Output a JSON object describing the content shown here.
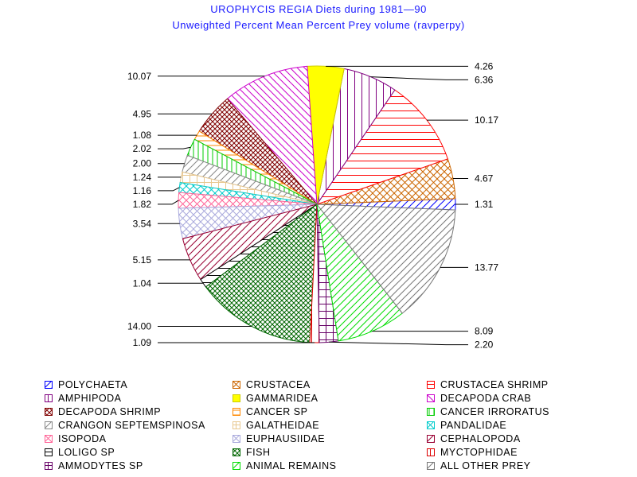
{
  "chart_data": {
    "type": "pie",
    "title": "UROPHYCIS REGIA Diets during 1981—90",
    "subtitle": "Unweighted Percent Mean Percent Prey  volume (ravperpy)",
    "slices": [
      {
        "name": "POLYCHAETA",
        "value": 1.31,
        "label": "1.31",
        "color": "#0000ff",
        "pattern": "diag-fwd"
      },
      {
        "name": "CRUSTACEA",
        "value": 4.67,
        "label": "4.67",
        "color": "#cc6600",
        "pattern": "cross-diag"
      },
      {
        "name": "CRUSTACEA SHRIMP",
        "value": 10.17,
        "label": "10.17",
        "color": "#ff0000",
        "pattern": "horiz"
      },
      {
        "name": "AMPHIPODA",
        "value": 6.36,
        "label": "6.36",
        "color": "#800080",
        "pattern": "vert"
      },
      {
        "name": "GAMMARIDEA",
        "value": 4.26,
        "label": "4.26",
        "color": "#ffff00",
        "pattern": "solid"
      },
      {
        "name": "DECAPODA CRAB",
        "value": 10.07,
        "label": "10.07",
        "color": "#cc00cc",
        "pattern": "diag-back"
      },
      {
        "name": "DECAPODA SHRIMP",
        "value": 4.95,
        "label": "4.95",
        "color": "#800000",
        "pattern": "cross-diag-dense"
      },
      {
        "name": "CANCER SP",
        "value": 1.08,
        "label": "1.08",
        "color": "#ff8800",
        "pattern": "horiz-dense"
      },
      {
        "name": "CANCER IRRORATUS",
        "value": 2.02,
        "label": "2.02",
        "color": "#00cc00",
        "pattern": "vert-dense"
      },
      {
        "name": "CRANGON SEPTEMSPINOSA",
        "value": 2.0,
        "label": "2.00",
        "color": "#888888",
        "pattern": "diag-fwd"
      },
      {
        "name": "GALATHEIDAE",
        "value": 1.24,
        "label": "1.24",
        "color": "#e8c890",
        "pattern": "grid"
      },
      {
        "name": "PANDALIDAE",
        "value": 1.16,
        "label": "1.16",
        "color": "#00cccc",
        "pattern": "cross-diag"
      },
      {
        "name": "ISOPODA",
        "value": 1.82,
        "label": "1.82",
        "color": "#ff6699",
        "pattern": "cross-diag"
      },
      {
        "name": "EUPHAUSIIDAE",
        "value": 3.54,
        "label": "3.54",
        "color": "#aaaadd",
        "pattern": "cross-diag"
      },
      {
        "name": "CEPHALOPODA",
        "value": 5.15,
        "label": "5.15",
        "color": "#990033",
        "pattern": "diag-fwd"
      },
      {
        "name": "LOLIGO SP",
        "value": 1.04,
        "label": "1.04",
        "color": "#000000",
        "pattern": "horiz"
      },
      {
        "name": "FISH",
        "value": 14.0,
        "label": "14.00",
        "color": "#006600",
        "pattern": "cross-diag-dense"
      },
      {
        "name": "MYCTOPHIDAE",
        "value": 1.09,
        "label": "1.09",
        "color": "#dd0000",
        "pattern": "vert"
      },
      {
        "name": "AMMODYTES SP",
        "value": 2.2,
        "label": "2.20",
        "color": "#660066",
        "pattern": "grid"
      },
      {
        "name": "ANIMAL REMAINS",
        "value": 8.09,
        "label": "8.09",
        "color": "#00dd00",
        "pattern": "diag-fwd"
      },
      {
        "name": "ALL OTHER PREY",
        "value": 13.77,
        "label": "13.77",
        "color": "#777777",
        "pattern": "diag-fwd"
      }
    ],
    "legend_position": "bottom"
  },
  "legend": [
    [
      "POLYCHAETA",
      "CRUSTACEA",
      "CRUSTACEA SHRIMP"
    ],
    [
      "AMPHIPODA",
      "GAMMARIDEA",
      "DECAPODA CRAB"
    ],
    [
      "DECAPODA SHRIMP",
      "CANCER SP",
      "CANCER IRRORATUS"
    ],
    [
      "CRANGON SEPTEMSPINOSA",
      "GALATHEIDAE",
      "PANDALIDAE"
    ],
    [
      "ISOPODA",
      "EUPHAUSIIDAE",
      "CEPHALOPODA"
    ],
    [
      "LOLIGO SP",
      "FISH",
      "MYCTOPHIDAE"
    ],
    [
      "AMMODYTES SP",
      "ANIMAL REMAINS",
      "ALL OTHER PREY"
    ]
  ]
}
